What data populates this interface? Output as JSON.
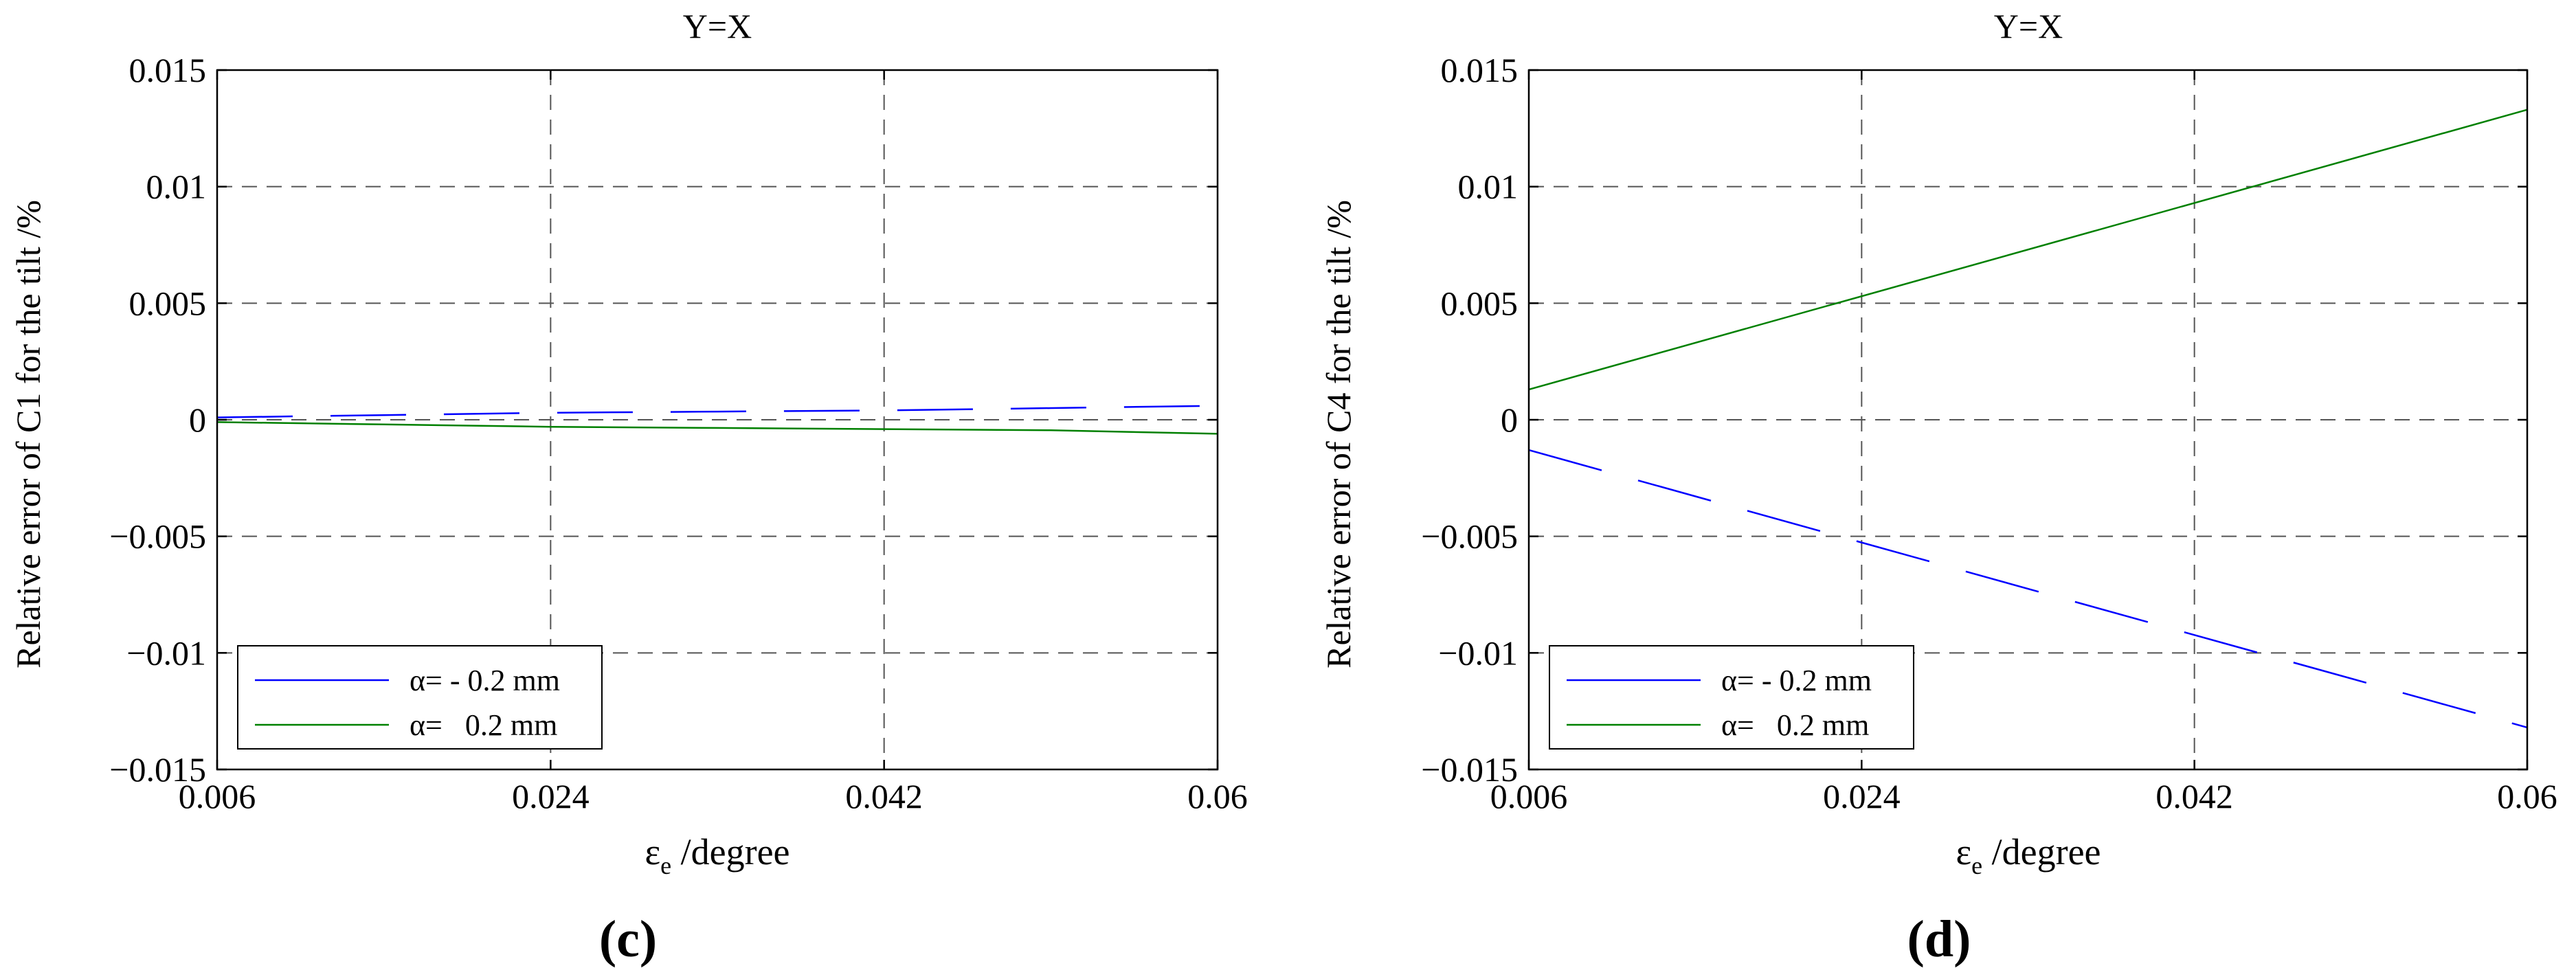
{
  "chart_data": [
    {
      "type": "line",
      "panel_label": "(c)",
      "title": "Y=X",
      "xlabel_main": "ε",
      "xlabel_sub": "e",
      "xlabel_rest": " /degree",
      "ylabel": "Relative error of C1  for the tilt /%",
      "xlim": [
        0.006,
        0.06
      ],
      "ylim": [
        -0.015,
        0.015
      ],
      "xticks": [
        0.006,
        0.024,
        0.042,
        0.06
      ],
      "xtick_labels": [
        "0.006",
        "0.024",
        "0.042",
        "0.06"
      ],
      "yticks": [
        -0.015,
        -0.01,
        -0.005,
        0,
        0.005,
        0.01,
        0.015
      ],
      "ytick_labels": [
        "−0.015",
        "−0.01",
        "−0.005",
        "0",
        "0.005",
        "0.01",
        "0.015"
      ],
      "grid": true,
      "legend_position": "lower-left",
      "series": [
        {
          "name": "α= - 0.2 mm",
          "color": "#0000ff",
          "dashed": true,
          "x": [
            0.006,
            0.015,
            0.024,
            0.033,
            0.042,
            0.051,
            0.06
          ],
          "y": [
            0.0001,
            0.0002,
            0.0003,
            0.00035,
            0.0004,
            0.0005,
            0.0006
          ]
        },
        {
          "name": "α=   0.2 mm",
          "color": "#008000",
          "dashed": false,
          "x": [
            0.006,
            0.015,
            0.024,
            0.033,
            0.042,
            0.051,
            0.06
          ],
          "y": [
            -0.0001,
            -0.0002,
            -0.0003,
            -0.00035,
            -0.0004,
            -0.00045,
            -0.0006
          ]
        }
      ]
    },
    {
      "type": "line",
      "panel_label": "(d)",
      "title": "Y=X",
      "xlabel_main": "ε",
      "xlabel_sub": "e",
      "xlabel_rest": " /degree",
      "ylabel": "Relative error of C4  for the tilt /%",
      "xlim": [
        0.006,
        0.06
      ],
      "ylim": [
        -0.015,
        0.015
      ],
      "xticks": [
        0.006,
        0.024,
        0.042,
        0.06
      ],
      "xtick_labels": [
        "0.006",
        "0.024",
        "0.042",
        "0.06"
      ],
      "yticks": [
        -0.015,
        -0.01,
        -0.005,
        0,
        0.005,
        0.01,
        0.015
      ],
      "ytick_labels": [
        "−0.015",
        "−0.01",
        "−0.005",
        "0",
        "0.005",
        "0.01",
        "0.015"
      ],
      "grid": true,
      "legend_position": "lower-left",
      "series": [
        {
          "name": "α= - 0.2 mm",
          "color": "#0000ff",
          "dashed": true,
          "x": [
            0.006,
            0.06
          ],
          "y": [
            -0.0013,
            -0.0132
          ]
        },
        {
          "name": "α=   0.2 mm",
          "color": "#008000",
          "dashed": false,
          "x": [
            0.006,
            0.06
          ],
          "y": [
            0.0013,
            0.0133
          ]
        }
      ]
    }
  ]
}
